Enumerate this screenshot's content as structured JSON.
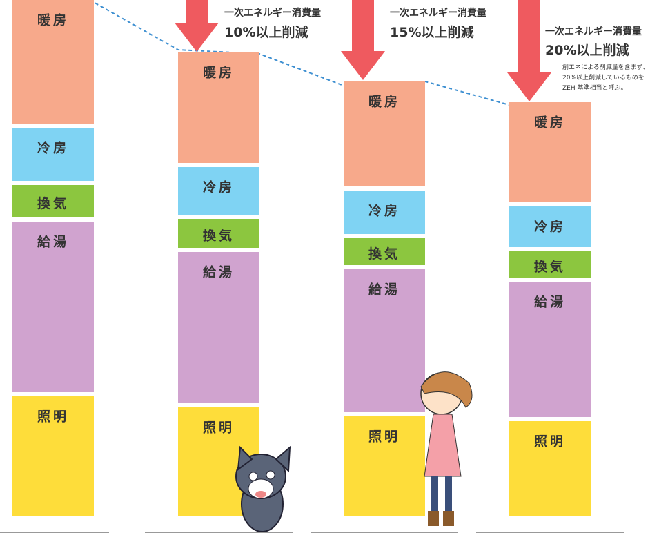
{
  "columns": [
    {
      "segments": [
        "暖房",
        "冷房",
        "換気",
        "給湯",
        "照明"
      ]
    },
    {
      "segments": [
        "暖房",
        "冷房",
        "換気",
        "給湯",
        "照明"
      ]
    },
    {
      "segments": [
        "暖房",
        "冷房",
        "換気",
        "給湯",
        "照明"
      ]
    },
    {
      "segments": [
        "暖房",
        "冷房",
        "換気",
        "給湯",
        "照明"
      ]
    }
  ],
  "reductions": [
    {
      "label": "一次エネルギー消費量",
      "amount": "10%以上削減"
    },
    {
      "label": "一次エネルギー消費量",
      "amount": "15%以上削減"
    },
    {
      "label": "一次エネルギー消費量",
      "amount": "20%以上削減"
    }
  ],
  "note": [
    "創エネによる削減量を含まず、",
    "20%以上削減しているものを",
    "ZEH 基準相当と呼ぶ。"
  ]
}
